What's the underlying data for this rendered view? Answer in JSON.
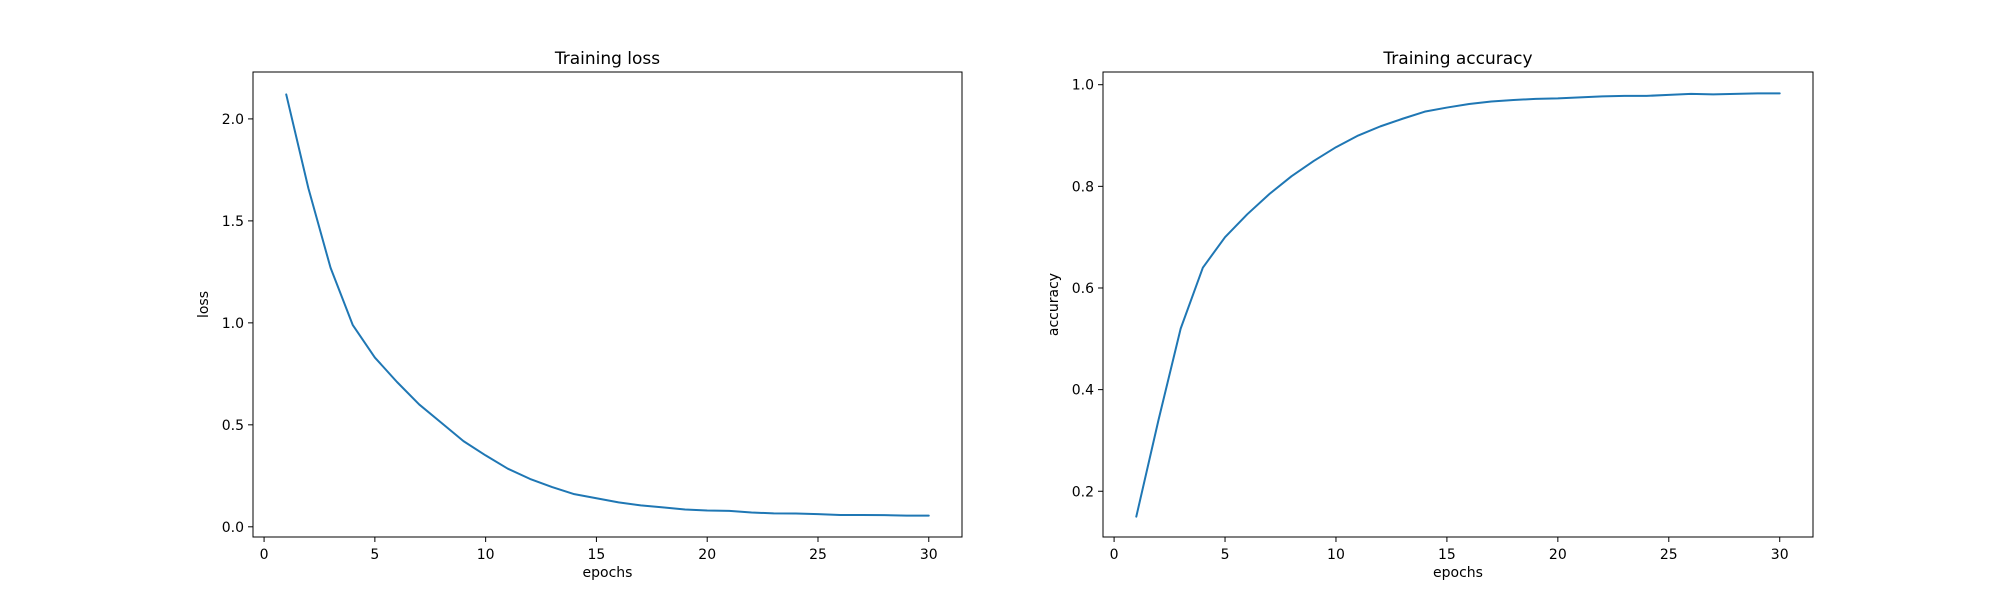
{
  "chart_data": [
    {
      "type": "line",
      "title": "Training loss",
      "xlabel": "epochs",
      "ylabel": "loss",
      "xlim": [
        -0.5,
        31.5
      ],
      "ylim": [
        -0.05,
        2.23
      ],
      "xticks": [
        0,
        5,
        10,
        15,
        20,
        25,
        30
      ],
      "yticks": [
        0.0,
        0.5,
        1.0,
        1.5,
        2.0
      ],
      "ytick_labels": [
        "0.0",
        "0.5",
        "1.0",
        "1.5",
        "2.0"
      ],
      "grid": false,
      "line_color": "#1f77b4",
      "x": [
        1,
        2,
        3,
        4,
        5,
        6,
        7,
        8,
        9,
        10,
        11,
        12,
        13,
        14,
        15,
        16,
        17,
        18,
        19,
        20,
        21,
        22,
        23,
        24,
        25,
        26,
        27,
        28,
        29,
        30
      ],
      "y": [
        2.12,
        1.66,
        1.27,
        0.99,
        0.83,
        0.71,
        0.6,
        0.51,
        0.42,
        0.35,
        0.285,
        0.235,
        0.195,
        0.16,
        0.14,
        0.12,
        0.105,
        0.095,
        0.085,
        0.08,
        0.078,
        0.07,
        0.066,
        0.065,
        0.062,
        0.058,
        0.058,
        0.057,
        0.055,
        0.055
      ]
    },
    {
      "type": "line",
      "title": "Training accuracy",
      "xlabel": "epochs",
      "ylabel": "accuracy",
      "xlim": [
        -0.5,
        31.5
      ],
      "ylim": [
        0.11,
        1.025
      ],
      "xticks": [
        0,
        5,
        10,
        15,
        20,
        25,
        30
      ],
      "yticks": [
        0.2,
        0.4,
        0.6,
        0.8,
        1.0
      ],
      "ytick_labels": [
        "0.2",
        "0.4",
        "0.6",
        "0.8",
        "1.0"
      ],
      "grid": false,
      "line_color": "#1f77b4",
      "x": [
        1,
        2,
        3,
        4,
        5,
        6,
        7,
        8,
        9,
        10,
        11,
        12,
        13,
        14,
        15,
        16,
        17,
        18,
        19,
        20,
        21,
        22,
        23,
        24,
        25,
        26,
        27,
        28,
        29,
        30
      ],
      "y": [
        0.15,
        0.34,
        0.52,
        0.64,
        0.7,
        0.745,
        0.785,
        0.82,
        0.85,
        0.877,
        0.9,
        0.918,
        0.933,
        0.947,
        0.955,
        0.962,
        0.967,
        0.97,
        0.972,
        0.973,
        0.975,
        0.977,
        0.978,
        0.978,
        0.98,
        0.982,
        0.981,
        0.982,
        0.983,
        0.983
      ]
    }
  ]
}
